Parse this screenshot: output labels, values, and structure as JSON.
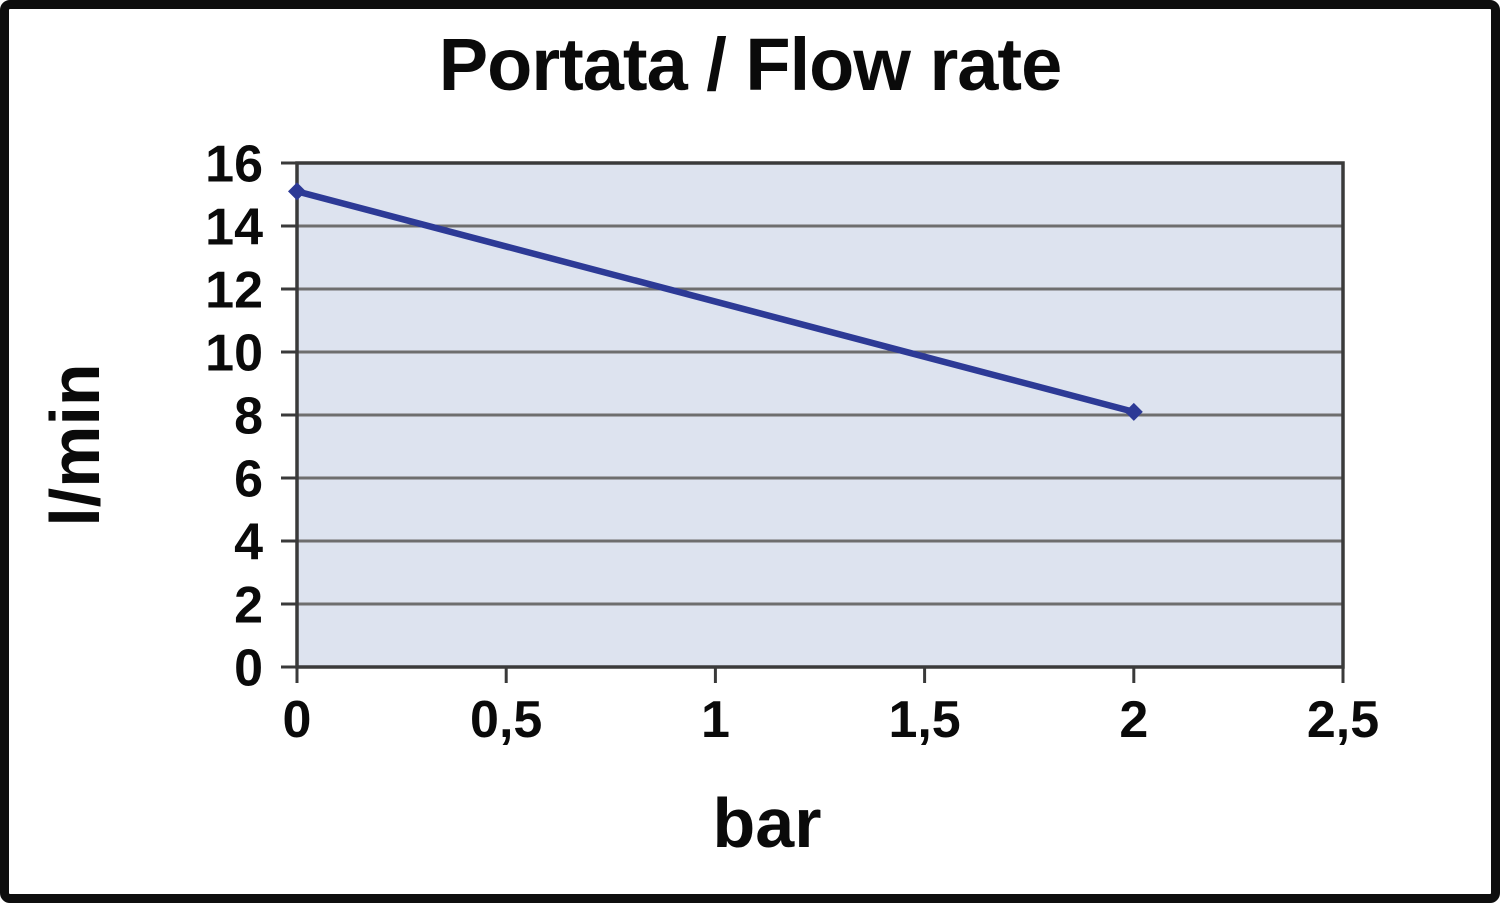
{
  "page": {
    "title": "Portata / Flow rate",
    "ylabel": "l/min",
    "xlabel": "bar"
  },
  "colors": {
    "frame": "#0e0e0e",
    "background": "#ffffff",
    "plot_bg": "#dde3ef",
    "grid": "#6e6e6e",
    "axis": "#3a3a3a",
    "line": "#2d3a96",
    "text": "#0a0a0a"
  },
  "chart_data": {
    "type": "line",
    "title": "Portata / Flow rate",
    "xlabel": "bar",
    "ylabel": "l/min",
    "series": [
      {
        "name": "Portata / Flow rate",
        "x": [
          0,
          2
        ],
        "values": [
          15.1,
          8.1
        ]
      }
    ],
    "xlim": [
      0,
      2.5
    ],
    "ylim": [
      0,
      16
    ],
    "x_tick_values": [
      0,
      0.5,
      1,
      1.5,
      2,
      2.5
    ],
    "x_tick_labels": [
      "0",
      "0,5",
      "1",
      "1,5",
      "2",
      "2,5"
    ],
    "y_tick_values": [
      16,
      14,
      12,
      10,
      8,
      6,
      4,
      2,
      0
    ],
    "y_tick_labels": [
      "16",
      "14",
      "12",
      "10",
      "8",
      "6",
      "4",
      "2",
      "0"
    ],
    "grid": "horizontal gridlines every 2 l/min",
    "legend_position": "none",
    "marker": "diamond"
  }
}
